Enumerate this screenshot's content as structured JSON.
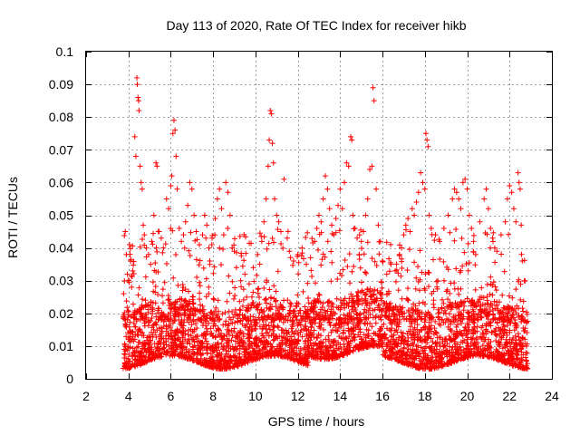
{
  "chart_data": {
    "type": "scatter",
    "title": "Day 113 of 2020, Rate Of TEC Index for receiver hikb",
    "xlabel": "GPS time / hours",
    "ylabel": "ROTI / TECUs",
    "xlim": [
      2,
      24
    ],
    "ylim": [
      0,
      0.1
    ],
    "grid": true,
    "marker": "+",
    "series_color": "#ff0000",
    "x_ticks": [
      2,
      4,
      6,
      8,
      10,
      12,
      14,
      16,
      18,
      20,
      22,
      24
    ],
    "x_tick_labels": [
      "2",
      "4",
      "6",
      "8",
      "10",
      "12",
      "14",
      "16",
      "18",
      "20",
      "22",
      "24"
    ],
    "y_ticks": [
      0,
      0.01,
      0.02,
      0.03,
      0.04,
      0.05,
      0.06,
      0.07,
      0.08,
      0.09,
      0.1
    ],
    "y_tick_labels": [
      "0",
      "0.01",
      "0.02",
      "0.03",
      "0.04",
      "0.05",
      "0.06",
      "0.07",
      "0.08",
      "0.09",
      "0.1"
    ],
    "time_range_hours": [
      3.75,
      22.85
    ],
    "series": [
      {
        "name": "ROTI",
        "points": [
          [
            3.85,
            0.045
          ],
          [
            3.9,
            0.038
          ],
          [
            3.95,
            0.032
          ],
          [
            4.0,
            0.03
          ],
          [
            4.05,
            0.041
          ],
          [
            4.1,
            0.036
          ],
          [
            4.15,
            0.028
          ],
          [
            4.2,
            0.033
          ],
          [
            4.3,
            0.074
          ],
          [
            4.35,
            0.068
          ],
          [
            4.4,
            0.092
          ],
          [
            4.42,
            0.09
          ],
          [
            4.45,
            0.086
          ],
          [
            4.48,
            0.085
          ],
          [
            4.5,
            0.082
          ],
          [
            4.55,
            0.065
          ],
          [
            4.6,
            0.06
          ],
          [
            4.65,
            0.058
          ],
          [
            4.7,
            0.047
          ],
          [
            4.75,
            0.044
          ],
          [
            4.85,
            0.04
          ],
          [
            4.95,
            0.038
          ],
          [
            5.05,
            0.035
          ],
          [
            5.1,
            0.042
          ],
          [
            5.2,
            0.05
          ],
          [
            5.3,
            0.066
          ],
          [
            5.35,
            0.065
          ],
          [
            5.45,
            0.045
          ],
          [
            5.55,
            0.043
          ],
          [
            5.65,
            0.04
          ],
          [
            5.8,
            0.055
          ],
          [
            5.9,
            0.052
          ],
          [
            6.0,
            0.059
          ],
          [
            6.05,
            0.062
          ],
          [
            6.1,
            0.075
          ],
          [
            6.15,
            0.079
          ],
          [
            6.2,
            0.076
          ],
          [
            6.25,
            0.068
          ],
          [
            6.3,
            0.058
          ],
          [
            6.4,
            0.046
          ],
          [
            6.5,
            0.042
          ],
          [
            6.6,
            0.044
          ],
          [
            6.7,
            0.048
          ],
          [
            6.8,
            0.053
          ],
          [
            6.9,
            0.06
          ],
          [
            7.0,
            0.058
          ],
          [
            7.1,
            0.05
          ],
          [
            7.2,
            0.045
          ],
          [
            7.35,
            0.041
          ],
          [
            7.5,
            0.044
          ],
          [
            7.6,
            0.05
          ],
          [
            7.7,
            0.047
          ],
          [
            7.8,
            0.04
          ],
          [
            7.95,
            0.043
          ],
          [
            8.1,
            0.049
          ],
          [
            8.2,
            0.055
          ],
          [
            8.3,
            0.058
          ],
          [
            8.4,
            0.052
          ],
          [
            8.5,
            0.044
          ],
          [
            8.6,
            0.06
          ],
          [
            8.7,
            0.057
          ],
          [
            8.8,
            0.05
          ],
          [
            8.9,
            0.04
          ],
          [
            9.0,
            0.039
          ],
          [
            9.1,
            0.034
          ],
          [
            9.3,
            0.03
          ],
          [
            9.5,
            0.032
          ],
          [
            9.7,
            0.029
          ],
          [
            9.9,
            0.034
          ],
          [
            10.1,
            0.038
          ],
          [
            10.3,
            0.042
          ],
          [
            10.4,
            0.048
          ],
          [
            10.5,
            0.055
          ],
          [
            10.6,
            0.065
          ],
          [
            10.65,
            0.073
          ],
          [
            10.7,
            0.082
          ],
          [
            10.75,
            0.081
          ],
          [
            10.8,
            0.072
          ],
          [
            10.85,
            0.066
          ],
          [
            10.9,
            0.055
          ],
          [
            11.0,
            0.05
          ],
          [
            11.1,
            0.048
          ],
          [
            11.2,
            0.045
          ],
          [
            11.35,
            0.061
          ],
          [
            11.5,
            0.043
          ],
          [
            11.6,
            0.039
          ],
          [
            11.8,
            0.036
          ],
          [
            12.0,
            0.038
          ],
          [
            12.2,
            0.04
          ],
          [
            12.4,
            0.035
          ],
          [
            12.6,
            0.037
          ],
          [
            12.8,
            0.042
          ],
          [
            12.9,
            0.046
          ],
          [
            13.0,
            0.05
          ],
          [
            13.1,
            0.048
          ],
          [
            13.2,
            0.055
          ],
          [
            13.3,
            0.062
          ],
          [
            13.4,
            0.058
          ],
          [
            13.5,
            0.052
          ],
          [
            13.6,
            0.047
          ],
          [
            13.7,
            0.044
          ],
          [
            13.8,
            0.049
          ],
          [
            13.9,
            0.053
          ],
          [
            14.0,
            0.058
          ],
          [
            14.1,
            0.052
          ],
          [
            14.2,
            0.06
          ],
          [
            14.3,
            0.066
          ],
          [
            14.4,
            0.065
          ],
          [
            14.5,
            0.074
          ],
          [
            14.55,
            0.073
          ],
          [
            14.6,
            0.05
          ],
          [
            14.7,
            0.046
          ],
          [
            14.8,
            0.043
          ],
          [
            14.9,
            0.038
          ],
          [
            15.0,
            0.042
          ],
          [
            15.1,
            0.045
          ],
          [
            15.2,
            0.05
          ],
          [
            15.3,
            0.055
          ],
          [
            15.4,
            0.064
          ],
          [
            15.5,
            0.065
          ],
          [
            15.55,
            0.089
          ],
          [
            15.6,
            0.085
          ],
          [
            15.7,
            0.058
          ],
          [
            15.8,
            0.047
          ],
          [
            15.9,
            0.042
          ],
          [
            16.0,
            0.036
          ],
          [
            16.2,
            0.032
          ],
          [
            16.4,
            0.035
          ],
          [
            16.6,
            0.033
          ],
          [
            16.8,
            0.038
          ],
          [
            16.9,
            0.04
          ],
          [
            17.0,
            0.044
          ],
          [
            17.1,
            0.047
          ],
          [
            17.2,
            0.049
          ],
          [
            17.3,
            0.045
          ],
          [
            17.4,
            0.052
          ],
          [
            17.5,
            0.05
          ],
          [
            17.6,
            0.054
          ],
          [
            17.7,
            0.057
          ],
          [
            17.8,
            0.063
          ],
          [
            17.9,
            0.06
          ],
          [
            18.0,
            0.058
          ],
          [
            18.05,
            0.075
          ],
          [
            18.1,
            0.073
          ],
          [
            18.15,
            0.071
          ],
          [
            18.2,
            0.05
          ],
          [
            18.3,
            0.046
          ],
          [
            18.5,
            0.044
          ],
          [
            18.7,
            0.042
          ],
          [
            18.9,
            0.046
          ],
          [
            19.1,
            0.05
          ],
          [
            19.3,
            0.055
          ],
          [
            19.4,
            0.058
          ],
          [
            19.5,
            0.057
          ],
          [
            19.6,
            0.055
          ],
          [
            19.7,
            0.052
          ],
          [
            19.8,
            0.06
          ],
          [
            19.9,
            0.061
          ],
          [
            20.0,
            0.058
          ],
          [
            20.1,
            0.05
          ],
          [
            20.2,
            0.046
          ],
          [
            20.3,
            0.042
          ],
          [
            20.4,
            0.038
          ],
          [
            20.6,
            0.048
          ],
          [
            20.8,
            0.055
          ],
          [
            20.9,
            0.058
          ],
          [
            21.0,
            0.052
          ],
          [
            21.1,
            0.046
          ],
          [
            21.2,
            0.043
          ],
          [
            21.3,
            0.04
          ],
          [
            21.4,
            0.039
          ],
          [
            21.6,
            0.044
          ],
          [
            21.8,
            0.048
          ],
          [
            21.9,
            0.055
          ],
          [
            22.0,
            0.059
          ],
          [
            22.1,
            0.057
          ],
          [
            22.2,
            0.052
          ],
          [
            22.3,
            0.048
          ],
          [
            22.4,
            0.063
          ],
          [
            22.45,
            0.06
          ],
          [
            22.5,
            0.058
          ],
          [
            22.55,
            0.047
          ],
          [
            22.6,
            0.036
          ],
          [
            22.7,
            0.03
          ],
          [
            4.0,
            0.012
          ],
          [
            4.5,
            0.015
          ],
          [
            5.0,
            0.011
          ],
          [
            5.5,
            0.013
          ],
          [
            6.0,
            0.014
          ],
          [
            6.5,
            0.01
          ],
          [
            7.0,
            0.012
          ],
          [
            7.5,
            0.011
          ],
          [
            8.0,
            0.013
          ],
          [
            8.5,
            0.01
          ],
          [
            9.0,
            0.009
          ],
          [
            9.5,
            0.011
          ],
          [
            10.0,
            0.012
          ],
          [
            10.5,
            0.014
          ],
          [
            11.0,
            0.013
          ],
          [
            11.5,
            0.012
          ],
          [
            12.0,
            0.014
          ],
          [
            12.5,
            0.015
          ],
          [
            13.0,
            0.016
          ],
          [
            13.5,
            0.017
          ],
          [
            14.0,
            0.018
          ],
          [
            14.5,
            0.019
          ],
          [
            15.0,
            0.018
          ],
          [
            15.5,
            0.016
          ],
          [
            16.0,
            0.013
          ],
          [
            16.5,
            0.012
          ],
          [
            17.0,
            0.011
          ],
          [
            17.5,
            0.012
          ],
          [
            18.0,
            0.013
          ],
          [
            18.5,
            0.011
          ],
          [
            19.0,
            0.012
          ],
          [
            19.5,
            0.013
          ],
          [
            20.0,
            0.012
          ],
          [
            20.5,
            0.011
          ],
          [
            21.0,
            0.012
          ],
          [
            21.5,
            0.011
          ],
          [
            22.0,
            0.012
          ],
          [
            22.5,
            0.011
          ],
          [
            22.8,
            0.01
          ],
          [
            3.8,
            0.009
          ]
        ]
      }
    ]
  }
}
